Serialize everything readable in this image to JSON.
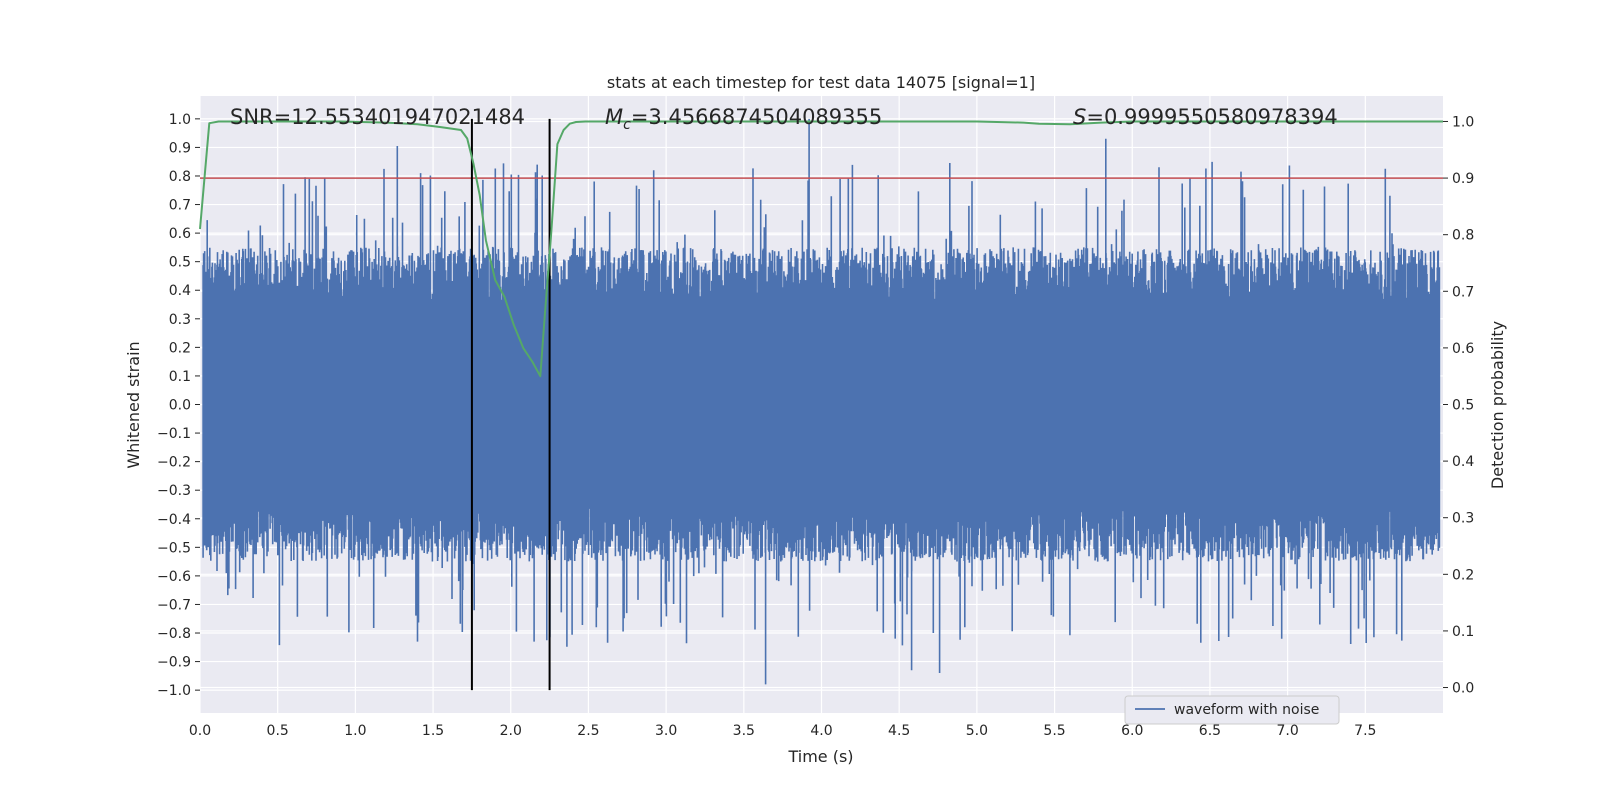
{
  "chart_data": {
    "type": "line",
    "title": "stats at each timestep for test data 14075 [signal=1]",
    "xlabel": "Time (s)",
    "ylabel": "Whitened strain",
    "y2label": "Detection probability",
    "xlim": [
      0.0,
      8.0
    ],
    "ylim": [
      -1.08,
      1.08
    ],
    "y2lim": [
      -0.045,
      1.045
    ],
    "x_ticks": [
      0.0,
      0.5,
      1.0,
      1.5,
      2.0,
      2.5,
      3.0,
      3.5,
      4.0,
      4.5,
      5.0,
      5.5,
      6.0,
      6.5,
      7.0,
      7.5
    ],
    "x_tick_labels": [
      "0.0",
      "0.5",
      "1.0",
      "1.5",
      "2.0",
      "2.5",
      "3.0",
      "3.5",
      "4.0",
      "4.5",
      "5.0",
      "5.5",
      "6.0",
      "6.5",
      "7.0",
      "7.5"
    ],
    "y_ticks": [
      1.0,
      0.9,
      0.8,
      0.7,
      0.6,
      0.5,
      0.4,
      0.3,
      0.2,
      0.1,
      0.0,
      -0.1,
      -0.2,
      -0.3,
      -0.4,
      -0.5,
      -0.6,
      -0.7,
      -0.8,
      -0.9,
      -1.0
    ],
    "y_tick_labels": [
      "1.0",
      "0.9",
      "0.8",
      "0.7",
      "0.6",
      "0.5",
      "0.4",
      "0.3",
      "0.2",
      "0.1",
      "0.0",
      "−0.1",
      "−0.2",
      "−0.3",
      "−0.4",
      "−0.5",
      "−0.6",
      "−0.7",
      "−0.8",
      "−0.9",
      "−1.0"
    ],
    "y2_ticks": [
      1.0,
      0.9,
      0.8,
      0.7,
      0.6,
      0.5,
      0.4,
      0.3,
      0.2,
      0.1,
      0.0
    ],
    "y2_tick_labels": [
      "1.0",
      "0.9",
      "0.8",
      "0.7",
      "0.6",
      "0.5",
      "0.4",
      "0.3",
      "0.2",
      "0.1",
      "0.0"
    ],
    "grid": true,
    "legend_position": "bottom-right",
    "annotations": {
      "snr": "SNR=12.553401947021484",
      "mc_symbol": "M",
      "mc_subscript": "c",
      "mc_value": "=3.4566874504089355",
      "s_symbol": "S",
      "s_value": "=0.9999550580978394"
    },
    "waveform": {
      "name": "waveform with noise",
      "color": "#4c72b0",
      "duration_s": 8.0,
      "typical_envelope": [
        0.35,
        0.55
      ],
      "max": 1.0,
      "min": -0.98
    },
    "detection_probability": {
      "color": "#55a868",
      "x": [
        0.0,
        0.06,
        0.12,
        0.3,
        0.6,
        0.9,
        1.2,
        1.4,
        1.55,
        1.68,
        1.72,
        1.76,
        1.8,
        1.84,
        1.9,
        1.96,
        2.02,
        2.08,
        2.14,
        2.19,
        2.22,
        2.26,
        2.3,
        2.34,
        2.38,
        2.42,
        2.48,
        2.6,
        3.0,
        4.0,
        5.0,
        5.3,
        5.4,
        5.6,
        5.8,
        6.0,
        7.0,
        8.0
      ],
      "y": [
        0.81,
        0.997,
        1.0,
        1.0,
        1.0,
        1.0,
        0.998,
        0.995,
        0.99,
        0.985,
        0.97,
        0.925,
        0.87,
        0.79,
        0.72,
        0.69,
        0.64,
        0.6,
        0.575,
        0.55,
        0.66,
        0.8,
        0.96,
        0.985,
        0.996,
        0.999,
        1.0,
        1.0,
        1.0,
        1.0,
        1.0,
        0.998,
        0.996,
        0.995,
        0.998,
        1.0,
        1.0,
        1.0
      ]
    },
    "threshold": {
      "value": 0.9,
      "axis": "y2",
      "color": "#c44e52"
    },
    "vertical_lines": {
      "x": [
        1.75,
        2.25
      ],
      "color": "#000000",
      "ylim": [
        -1.0,
        1.0
      ]
    }
  }
}
